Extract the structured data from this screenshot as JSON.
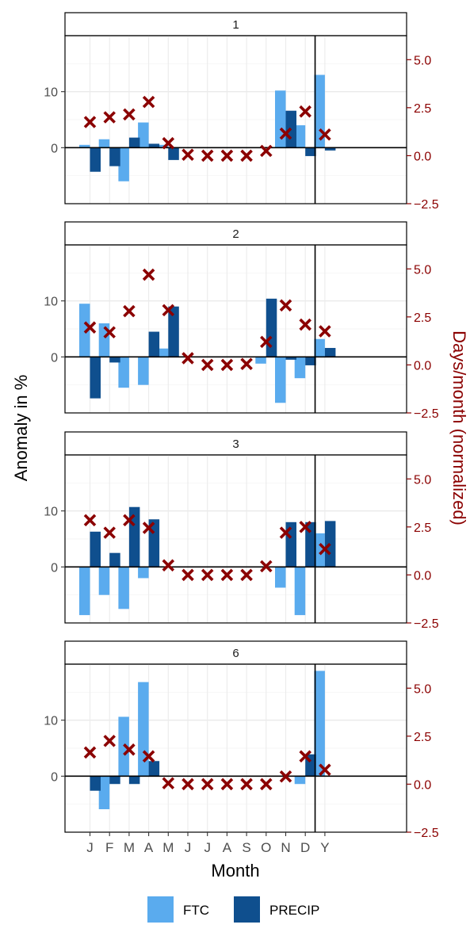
{
  "chart_data": {
    "type": "bar",
    "categories": [
      "J",
      "F",
      "M",
      "A",
      "M",
      "J",
      "J",
      "A",
      "S",
      "O",
      "N",
      "D",
      "Y"
    ],
    "xlabel": "Month",
    "ylabel": "Anomaly in %",
    "ylabel_right": "Days/month (normalized)",
    "left_ticks": [
      "10",
      "0"
    ],
    "right_ticks": [
      "5.0",
      "2.5",
      "0.0",
      "−2.5"
    ],
    "ylim_left": [
      -10,
      20
    ],
    "ylim_right": [
      -2.5,
      6.25
    ],
    "vline_after_category": 12,
    "grid": true,
    "legend": {
      "position": "bottom",
      "items": [
        {
          "name": "FTC",
          "color": "#5aabee"
        },
        {
          "name": "PRECIP",
          "color": "#0f4f8e"
        }
      ]
    },
    "marker_color": "#8b0000",
    "axis_color_right": "#8b0000",
    "panels": [
      {
        "label": "1",
        "series": [
          {
            "name": "FTC",
            "values": [
              0.5,
              1.5,
              -6.0,
              4.5,
              0.5,
              0,
              0,
              0,
              0,
              0,
              10.2,
              4.0,
              13.0
            ]
          },
          {
            "name": "PRECIP",
            "values": [
              -4.3,
              -3.3,
              1.8,
              0.7,
              -2.2,
              0,
              0,
              0,
              0,
              0,
              6.6,
              -1.5,
              -0.5
            ]
          }
        ],
        "markers": [
          1.75,
          2.0,
          2.15,
          2.8,
          0.65,
          0.05,
          0.0,
          0.0,
          0.0,
          0.25,
          1.15,
          2.3,
          1.1
        ]
      },
      {
        "label": "2",
        "series": [
          {
            "name": "FTC",
            "values": [
              9.5,
              6.0,
              -5.5,
              -5.0,
              1.5,
              0,
              0,
              0,
              0,
              -1.2,
              -8.2,
              -3.8,
              3.2
            ]
          },
          {
            "name": "PRECIP",
            "values": [
              -7.4,
              -1.0,
              0,
              4.5,
              9.0,
              0,
              0,
              0,
              0,
              10.4,
              -0.5,
              -1.5,
              1.6
            ]
          }
        ],
        "markers": [
          1.95,
          1.7,
          2.8,
          4.7,
          2.85,
          0.35,
          0.0,
          0.0,
          0.05,
          1.2,
          3.1,
          2.1,
          1.75
        ]
      },
      {
        "label": "3",
        "series": [
          {
            "name": "FTC",
            "values": [
              -8.6,
              -5.0,
              -7.5,
              -2.0,
              0,
              0,
              0,
              0,
              0,
              0,
              -3.7,
              -8.6,
              6.0
            ]
          },
          {
            "name": "PRECIP",
            "values": [
              6.3,
              2.5,
              10.7,
              8.5,
              0,
              0,
              0,
              0,
              0,
              0,
              8.0,
              8.0,
              8.2
            ]
          }
        ],
        "markers": [
          2.85,
          2.2,
          2.85,
          2.45,
          0.5,
          0.0,
          0.0,
          0.0,
          0.0,
          0.45,
          2.2,
          2.5,
          1.35
        ]
      },
      {
        "label": "6",
        "series": [
          {
            "name": "FTC",
            "values": [
              0,
              -5.9,
              10.6,
              16.8,
              0,
              0,
              0,
              0,
              0,
              0,
              0,
              -1.4,
              18.8
            ]
          },
          {
            "name": "PRECIP",
            "values": [
              -2.6,
              -1.4,
              -1.4,
              2.7,
              0,
              0,
              0,
              0,
              0,
              0,
              0,
              3.9,
              0
            ]
          }
        ],
        "markers": [
          1.65,
          2.25,
          1.8,
          1.45,
          0.05,
          0.0,
          0.0,
          0.0,
          0.0,
          0.0,
          0.4,
          1.45,
          0.75
        ]
      }
    ]
  }
}
